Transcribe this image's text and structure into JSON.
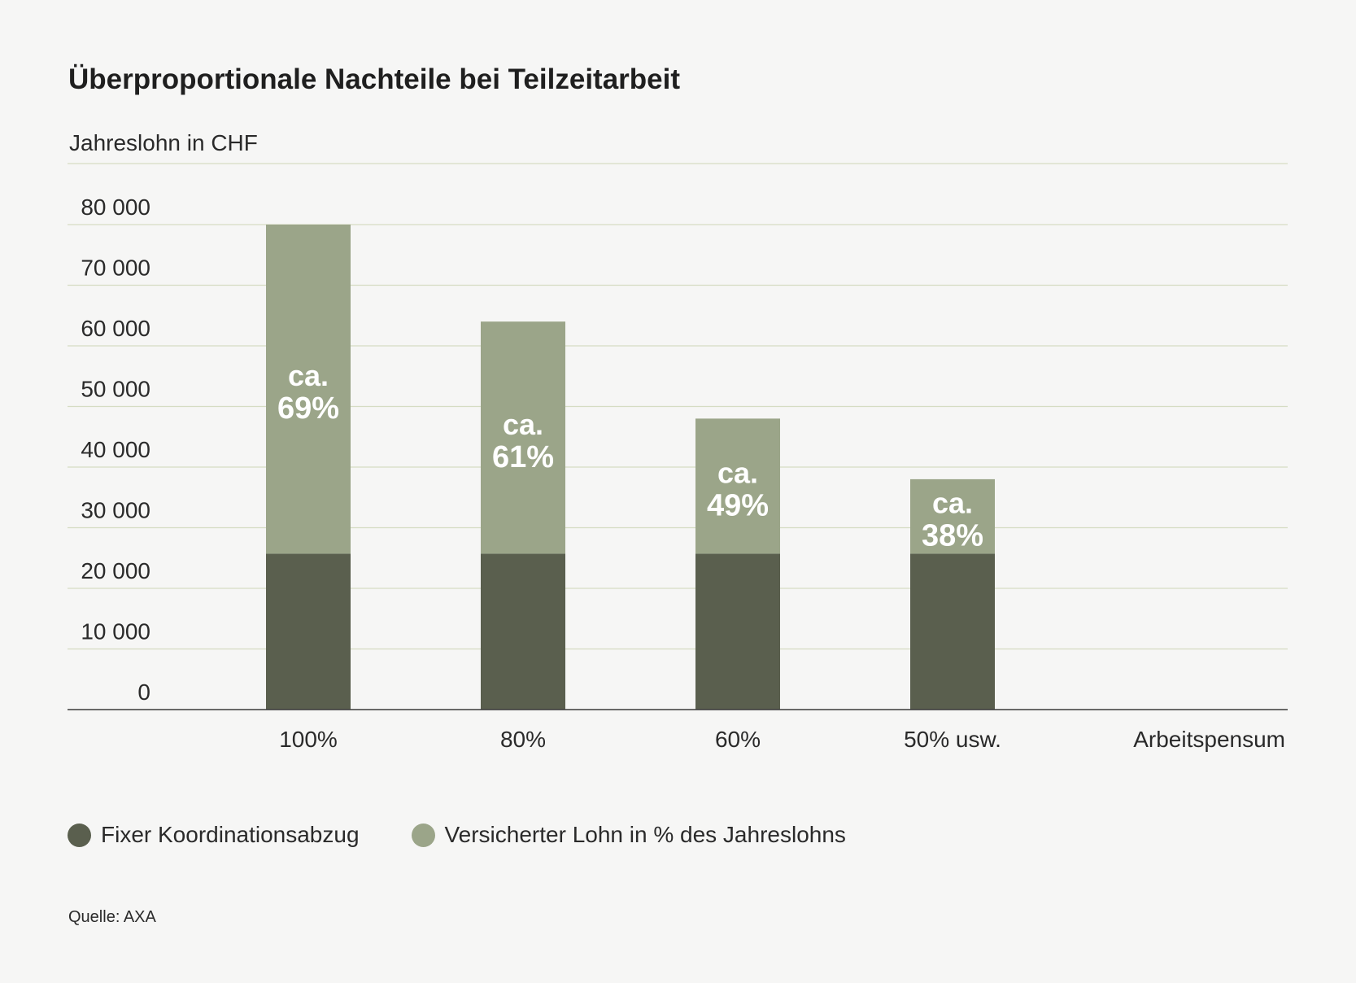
{
  "chart_data": {
    "type": "bar",
    "stacked": true,
    "title": "Überproportionale Nachteile bei Teilzeitarbeit",
    "ylabel": "Jahreslohn in CHF",
    "xlabel": "Arbeitspensum",
    "categories": [
      "100%",
      "80%",
      "60%",
      "50% usw."
    ],
    "ylim": [
      0,
      80000
    ],
    "yticks": [
      0,
      10000,
      20000,
      30000,
      40000,
      50000,
      60000,
      70000,
      80000
    ],
    "ytick_labels": [
      "0",
      "10 000",
      "20 000",
      "30 000",
      "40 000",
      "50 000",
      "60 000",
      "70 000",
      "80 000"
    ],
    "series": [
      {
        "name": "Fixer Koordinationsabzug",
        "values": [
          25725,
          25725,
          25725,
          25725
        ],
        "color": "#5a5f4e"
      },
      {
        "name": "Versicherter Lohn in % des Jahreslohns",
        "values": [
          54275,
          38275,
          22275,
          12275
        ],
        "color": "#9ba589"
      }
    ],
    "annotations": [
      {
        "line1": "ca.",
        "line2": "69%"
      },
      {
        "line1": "ca.",
        "line2": "61%"
      },
      {
        "line1": "ca.",
        "line2": "49%"
      },
      {
        "line1": "ca.",
        "line2": "38%"
      }
    ],
    "grid": true,
    "legend": "bottom-left"
  },
  "source": "Quelle: AXA",
  "colors": {
    "background": "#f6f6f5",
    "grid": "#d5dcc3",
    "axis": "#3a3a3a"
  }
}
